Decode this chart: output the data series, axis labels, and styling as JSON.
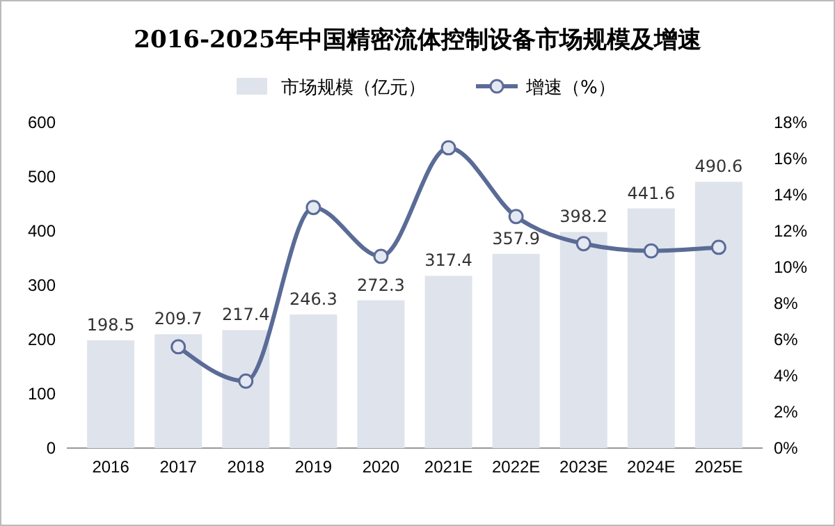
{
  "chart_data": {
    "type": "bar",
    "title": "2016-2025年中国精密流体控制设备市场规模及增速",
    "categories": [
      "2016",
      "2017",
      "2018",
      "2019",
      "2020",
      "2021E",
      "2022E",
      "2023E",
      "2024E",
      "2025E"
    ],
    "series": [
      {
        "name": "市场规模（亿元）",
        "color": "#dfe3ec",
        "values": [
          198.5,
          209.7,
          217.4,
          246.3,
          272.3,
          317.4,
          357.9,
          398.2,
          441.6,
          490.6
        ],
        "value_labels": [
          "198.5",
          "209.7",
          "217.4",
          "246.3",
          "272.3",
          "317.4",
          "357.9",
          "398.2",
          "441.6",
          "490.6"
        ]
      },
      {
        "name": "增速（%）",
        "type": "line",
        "axis": "y2",
        "color": "#5a6b96",
        "values": [
          null,
          5.6,
          3.7,
          13.3,
          10.6,
          16.6,
          12.8,
          11.3,
          10.9,
          11.1
        ]
      }
    ],
    "ylim": [
      0,
      600
    ],
    "yticks": [
      0,
      100,
      200,
      300,
      400,
      500,
      600
    ],
    "y2lim": [
      0,
      18
    ],
    "y2ticks": [
      {
        "value": 0,
        "label": "0%"
      },
      {
        "value": 2,
        "label": "2%"
      },
      {
        "value": 4,
        "label": "4%"
      },
      {
        "value": 6,
        "label": "6%"
      },
      {
        "value": 8,
        "label": "8%"
      },
      {
        "value": 10,
        "label": "10%"
      },
      {
        "value": 12,
        "label": "12%"
      },
      {
        "value": 14,
        "label": "14%"
      },
      {
        "value": 16,
        "label": "16%"
      },
      {
        "value": 18,
        "label": "18%"
      }
    ],
    "legend": "top",
    "marker": "circle",
    "line_style": "solid",
    "grid": false
  }
}
